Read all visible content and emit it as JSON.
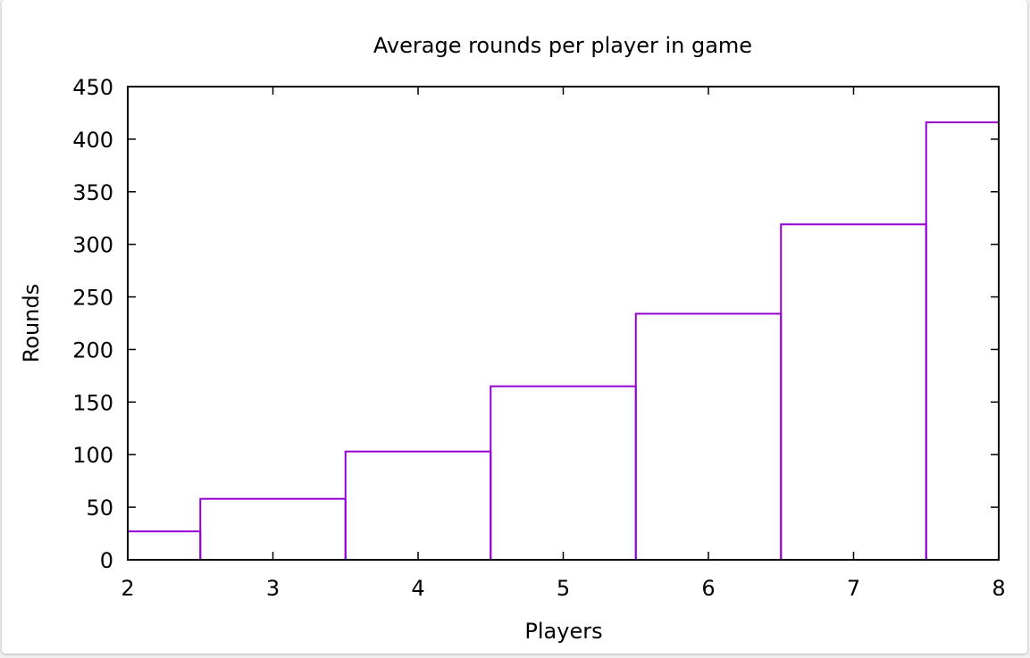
{
  "chart_data": {
    "type": "bar",
    "style": "step histogram",
    "title": "Average rounds per player in game",
    "xlabel": "Players",
    "ylabel": "Rounds",
    "xlim": [
      2,
      8
    ],
    "ylim": [
      0,
      450
    ],
    "xticks": [
      2,
      3,
      4,
      5,
      6,
      7,
      8
    ],
    "yticks": [
      0,
      50,
      100,
      150,
      200,
      250,
      300,
      350,
      400,
      450
    ],
    "categories": [
      2,
      3,
      4,
      5,
      6,
      7,
      8
    ],
    "values": [
      27,
      58,
      103,
      165,
      234,
      319,
      416
    ],
    "bar_color": "#9400d3",
    "grid": false,
    "legend": "none"
  }
}
